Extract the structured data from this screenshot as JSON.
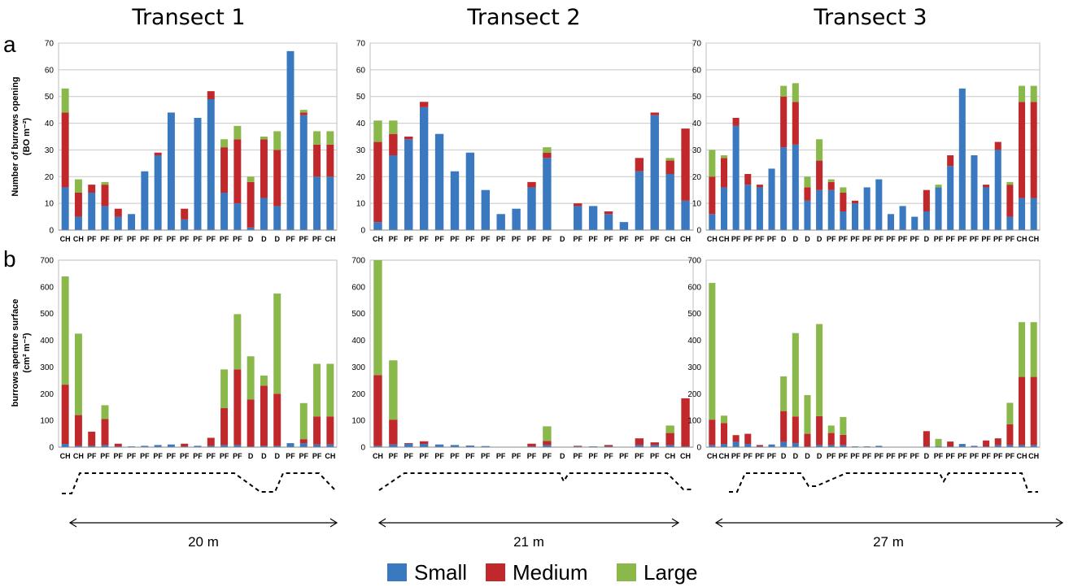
{
  "panel_labels": [
    "a",
    "b"
  ],
  "legend": [
    {
      "label": "Small",
      "color": "#3a78c0"
    },
    {
      "label": "Medium",
      "color": "#c0282b"
    },
    {
      "label": "Large",
      "color": "#8ab84a"
    }
  ],
  "chart_data": [
    {
      "type": "bar",
      "stacked": true,
      "title": "Transect 1",
      "ylabel_line1": "Number of burrows opening",
      "ylabel_line2": "(BO m⁻²)",
      "ylim": [
        0,
        70
      ],
      "yticks": [
        0,
        10,
        20,
        30,
        40,
        50,
        60,
        70
      ],
      "grid": true,
      "categories": [
        "CH",
        "CH",
        "PF",
        "PF",
        "PF",
        "PF",
        "PF",
        "PF",
        "PF",
        "PF",
        "PF",
        "PF",
        "PF",
        "PF",
        "D",
        "D",
        "D",
        "PF",
        "PF",
        "PF",
        "CH"
      ],
      "series": [
        {
          "name": "Small",
          "color": "#3a78c0",
          "values": [
            16,
            5,
            14,
            9,
            5,
            6,
            22,
            28,
            44,
            4,
            42,
            49,
            14,
            10,
            1,
            12,
            9,
            67,
            43,
            20,
            20
          ]
        },
        {
          "name": "Medium",
          "color": "#c0282b",
          "values": [
            28,
            9,
            3,
            8,
            3,
            0,
            0,
            1,
            0,
            4,
            0,
            3,
            17,
            24,
            17,
            22,
            21,
            0,
            1,
            12,
            12
          ]
        },
        {
          "name": "Large",
          "color": "#8ab84a",
          "values": [
            9,
            5,
            0,
            1,
            0,
            0,
            0,
            0,
            0,
            0,
            0,
            0,
            3,
            5,
            2,
            1,
            7,
            0,
            1,
            5,
            5
          ]
        }
      ]
    },
    {
      "type": "bar",
      "stacked": true,
      "title": "Transect 2",
      "ylim": [
        0,
        70
      ],
      "yticks": [
        0,
        10,
        20,
        30,
        40,
        50,
        60,
        70
      ],
      "grid": true,
      "categories": [
        "CH",
        "PF",
        "PF",
        "PF",
        "PF",
        "PF",
        "PF",
        "PF",
        "PF",
        "PF",
        "PF",
        "PF",
        "D",
        "PF",
        "PF",
        "PF",
        "PF",
        "PF",
        "PF",
        "CH",
        "CH"
      ],
      "series": [
        {
          "name": "Small",
          "color": "#3a78c0",
          "values": [
            3,
            28,
            34,
            46,
            36,
            22,
            29,
            15,
            6,
            8,
            16,
            27,
            0,
            9,
            9,
            6,
            3,
            22,
            43,
            21,
            11
          ]
        },
        {
          "name": "Medium",
          "color": "#c0282b",
          "values": [
            30,
            8,
            1,
            2,
            0,
            0,
            0,
            0,
            0,
            0,
            2,
            2,
            0,
            1,
            0,
            1,
            0,
            5,
            1,
            5,
            27
          ]
        },
        {
          "name": "Large",
          "color": "#8ab84a",
          "values": [
            8,
            5,
            0,
            0,
            0,
            0,
            0,
            0,
            0,
            0,
            0,
            2,
            0,
            0,
            0,
            0,
            0,
            0,
            0,
            1,
            0
          ]
        }
      ]
    },
    {
      "type": "bar",
      "stacked": true,
      "title": "Transect 3",
      "ylim": [
        0,
        70
      ],
      "yticks": [
        0,
        10,
        20,
        30,
        40,
        50,
        60,
        70
      ],
      "grid": true,
      "categories": [
        "CH",
        "CH",
        "PF",
        "PF",
        "PF",
        "PF",
        "D",
        "D",
        "D",
        "D",
        "PF",
        "PF",
        "PF",
        "PF",
        "PF",
        "PF",
        "PF",
        "PF",
        "D",
        "PF",
        "PF",
        "PF",
        "PF",
        "PF",
        "PF",
        "PF",
        "CH",
        "CH"
      ],
      "series": [
        {
          "name": "Small",
          "color": "#3a78c0",
          "values": [
            6,
            16,
            39,
            17,
            16,
            23,
            31,
            32,
            11,
            15,
            15,
            7,
            10,
            16,
            19,
            6,
            9,
            5,
            7,
            16,
            24,
            53,
            28,
            16,
            30,
            5,
            12,
            12
          ]
        },
        {
          "name": "Medium",
          "color": "#c0282b",
          "values": [
            14,
            11,
            3,
            4,
            1,
            0,
            19,
            16,
            5,
            11,
            3,
            7,
            1,
            0,
            0,
            0,
            0,
            0,
            8,
            0,
            4,
            0,
            0,
            1,
            3,
            12,
            36,
            36
          ]
        },
        {
          "name": "Large",
          "color": "#8ab84a",
          "values": [
            10,
            1,
            0,
            0,
            0,
            0,
            4,
            7,
            4,
            8,
            1,
            2,
            0,
            0,
            0,
            0,
            0,
            0,
            0,
            1,
            0,
            0,
            0,
            0,
            0,
            1,
            6,
            6
          ]
        }
      ]
    },
    {
      "type": "bar",
      "stacked": true,
      "ylabel_line1": "burrows aperture surface",
      "ylabel_line2": "(cm² m⁻²)",
      "ylim": [
        0,
        700
      ],
      "yticks": [
        0,
        100,
        200,
        300,
        400,
        500,
        600,
        700
      ],
      "grid": false,
      "categories": [
        "CH",
        "CH",
        "PF",
        "PF",
        "PF",
        "PF",
        "PF",
        "PF",
        "PF",
        "PF",
        "PF",
        "PF",
        "PF",
        "PF",
        "D",
        "D",
        "D",
        "PF",
        "PF",
        "PF",
        "CH"
      ],
      "series": [
        {
          "name": "Small",
          "color": "#3a78c0",
          "values": [
            12,
            5,
            5,
            8,
            3,
            3,
            5,
            8,
            10,
            3,
            5,
            5,
            8,
            8,
            3,
            5,
            5,
            15,
            15,
            10,
            10
          ]
        },
        {
          "name": "Medium",
          "color": "#c0282b",
          "values": [
            222,
            115,
            53,
            97,
            10,
            0,
            0,
            0,
            0,
            10,
            0,
            30,
            138,
            283,
            175,
            225,
            195,
            0,
            15,
            105,
            105
          ]
        },
        {
          "name": "Large",
          "color": "#8ab84a",
          "values": [
            405,
            305,
            0,
            52,
            0,
            0,
            0,
            0,
            0,
            0,
            0,
            0,
            145,
            207,
            162,
            38,
            375,
            0,
            135,
            197,
            197
          ]
        }
      ]
    },
    {
      "type": "bar",
      "stacked": true,
      "ylim": [
        0,
        700
      ],
      "yticks": [
        0,
        100,
        200,
        300,
        400,
        500,
        600,
        700
      ],
      "grid": false,
      "categories": [
        "CH",
        "PF",
        "PF",
        "PF",
        "PF",
        "PF",
        "PF",
        "PF",
        "PF",
        "PF",
        "PF",
        "PF",
        "D",
        "PF",
        "PF",
        "PF",
        "PF",
        "PF",
        "PF",
        "CH",
        "CH"
      ],
      "series": [
        {
          "name": "Small",
          "color": "#3a78c0",
          "values": [
            5,
            10,
            12,
            12,
            10,
            8,
            6,
            4,
            0,
            0,
            3,
            8,
            0,
            3,
            3,
            3,
            0,
            8,
            8,
            8,
            3
          ]
        },
        {
          "name": "Medium",
          "color": "#c0282b",
          "values": [
            265,
            93,
            3,
            10,
            0,
            0,
            0,
            0,
            0,
            0,
            10,
            15,
            0,
            2,
            0,
            5,
            0,
            25,
            10,
            45,
            180
          ]
        },
        {
          "name": "Large",
          "color": "#8ab84a",
          "values": [
            430,
            222,
            0,
            0,
            0,
            0,
            0,
            0,
            0,
            0,
            0,
            55,
            0,
            0,
            0,
            0,
            0,
            0,
            0,
            28,
            0
          ]
        }
      ]
    },
    {
      "type": "bar",
      "stacked": true,
      "ylim": [
        0,
        700
      ],
      "yticks": [
        0,
        100,
        200,
        300,
        400,
        500,
        600,
        700
      ],
      "grid": false,
      "categories": [
        "CH",
        "CH",
        "PF",
        "PF",
        "PF",
        "PF",
        "D",
        "D",
        "D",
        "D",
        "PF",
        "PF",
        "PF",
        "PF",
        "PF",
        "PF",
        "PF",
        "PF",
        "D",
        "PF",
        "PF",
        "PF",
        "PF",
        "PF",
        "PF",
        "PF",
        "CH",
        "CH"
      ],
      "series": [
        {
          "name": "Small",
          "color": "#3a78c0",
          "values": [
            8,
            12,
            20,
            12,
            3,
            10,
            20,
            15,
            3,
            8,
            8,
            8,
            3,
            3,
            5,
            0,
            0,
            0,
            3,
            3,
            3,
            12,
            5,
            3,
            8,
            8,
            8,
            8
          ]
        },
        {
          "name": "Medium",
          "color": "#c0282b",
          "values": [
            95,
            78,
            25,
            38,
            5,
            0,
            115,
            100,
            47,
            108,
            45,
            38,
            0,
            0,
            0,
            0,
            0,
            0,
            57,
            0,
            18,
            0,
            0,
            22,
            25,
            78,
            255,
            255
          ]
        },
        {
          "name": "Large",
          "color": "#8ab84a",
          "values": [
            512,
            28,
            0,
            0,
            0,
            0,
            130,
            312,
            145,
            345,
            28,
            67,
            0,
            0,
            0,
            0,
            0,
            0,
            0,
            28,
            0,
            0,
            0,
            0,
            0,
            80,
            205,
            205
          ]
        }
      ]
    }
  ],
  "distances": [
    "20 m",
    "21 m",
    "27 m"
  ]
}
